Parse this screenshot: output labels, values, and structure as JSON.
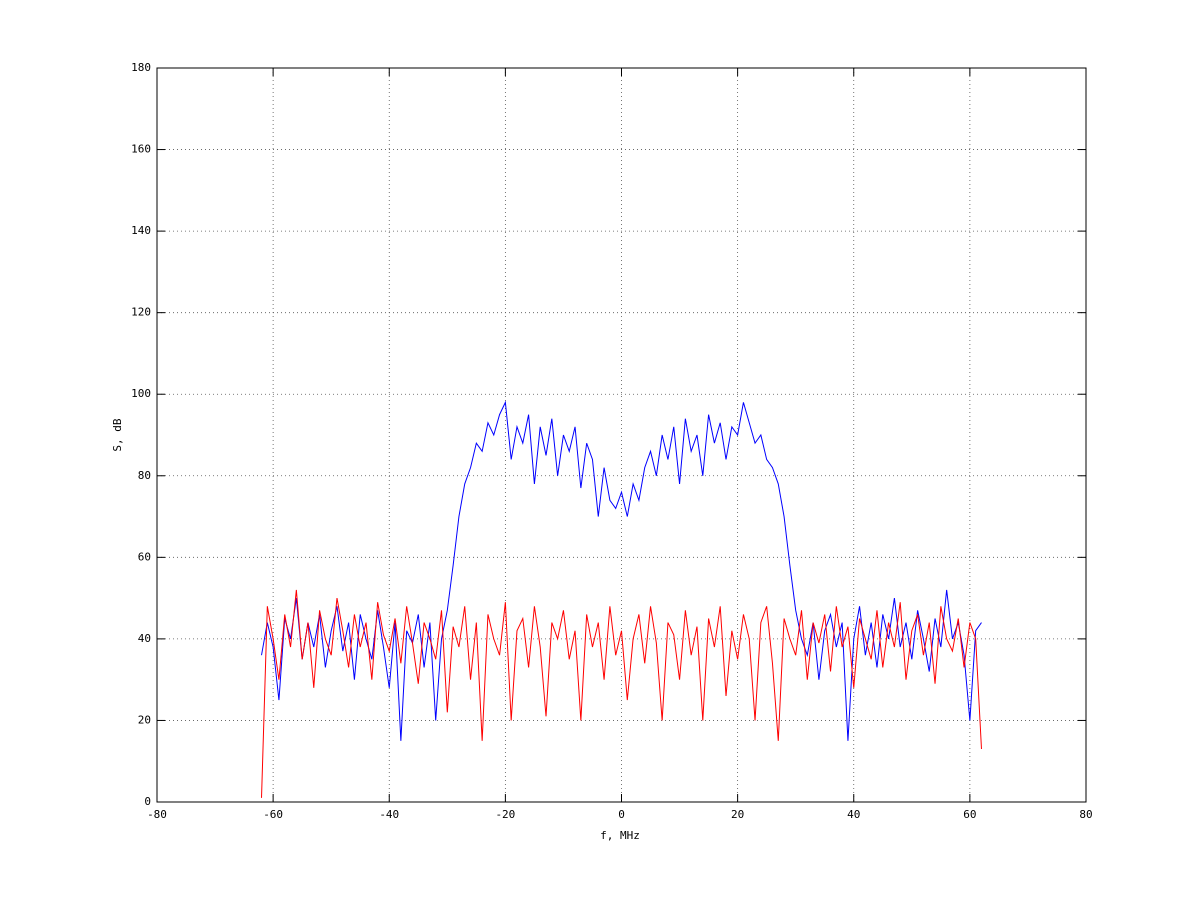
{
  "chart_data": {
    "type": "line",
    "x_label": "f, MHz",
    "y_label": "S, dB",
    "x": [
      -62,
      -61,
      -60,
      -59,
      -58,
      -57,
      -56,
      -55,
      -54,
      -53,
      -52,
      -51,
      -50,
      -49,
      -48,
      -47,
      -46,
      -45,
      -44,
      -43,
      -42,
      -41,
      -40,
      -39,
      -38,
      -37,
      -36,
      -35,
      -34,
      -33,
      -32,
      -31,
      -30,
      -29,
      -28,
      -27,
      -26,
      -25,
      -24,
      -23,
      -22,
      -21,
      -20,
      -19,
      -18,
      -17,
      -16,
      -15,
      -14,
      -13,
      -12,
      -11,
      -10,
      -9,
      -8,
      -7,
      -6,
      -5,
      -4,
      -3,
      -2,
      -1,
      0,
      1,
      2,
      3,
      4,
      5,
      6,
      7,
      8,
      9,
      10,
      11,
      12,
      13,
      14,
      15,
      16,
      17,
      18,
      19,
      20,
      21,
      22,
      23,
      24,
      25,
      26,
      27,
      28,
      29,
      30,
      31,
      32,
      33,
      34,
      35,
      36,
      37,
      38,
      39,
      40,
      41,
      42,
      43,
      44,
      45,
      46,
      47,
      48,
      49,
      50,
      51,
      52,
      53,
      54,
      55,
      56,
      57,
      58,
      59,
      60,
      61,
      62
    ],
    "series": [
      {
        "color": "#0000ff",
        "values": [
          36,
          44,
          38,
          25,
          45,
          40,
          50,
          35,
          44,
          38,
          46,
          33,
          42,
          48,
          37,
          44,
          30,
          46,
          40,
          35,
          47,
          38,
          28,
          44,
          15,
          42,
          39,
          46,
          33,
          44,
          20,
          40,
          47,
          58,
          70,
          78,
          82,
          88,
          86,
          93,
          90,
          95,
          98,
          84,
          92,
          88,
          95,
          78,
          92,
          85,
          94,
          80,
          90,
          86,
          92,
          77,
          88,
          84,
          70,
          82,
          74,
          72,
          76,
          70,
          78,
          74,
          82,
          86,
          80,
          90,
          84,
          92,
          78,
          94,
          86,
          90,
          80,
          95,
          88,
          93,
          84,
          92,
          90,
          98,
          93,
          88,
          90,
          84,
          82,
          78,
          70,
          58,
          47,
          40,
          36,
          44,
          30,
          42,
          46,
          38,
          44,
          15,
          40,
          48,
          36,
          44,
          33,
          46,
          40,
          50,
          38,
          44,
          35,
          47,
          40,
          32,
          45,
          38,
          52,
          40,
          44,
          36,
          20,
          42,
          44
        ]
      },
      {
        "color": "#ff0000",
        "values": [
          1,
          48,
          40,
          30,
          46,
          38,
          52,
          35,
          44,
          28,
          47,
          40,
          36,
          50,
          42,
          33,
          46,
          38,
          44,
          30,
          49,
          41,
          37,
          45,
          34,
          48,
          39,
          29,
          44,
          40,
          35,
          47,
          22,
          43,
          38,
          48,
          30,
          44,
          15,
          46,
          40,
          36,
          49,
          20,
          42,
          45,
          33,
          48,
          38,
          21,
          44,
          40,
          47,
          35,
          42,
          20,
          46,
          38,
          44,
          30,
          48,
          36,
          42,
          25,
          40,
          46,
          34,
          48,
          39,
          20,
          44,
          41,
          30,
          47,
          36,
          43,
          20,
          45,
          38,
          48,
          26,
          42,
          35,
          46,
          40,
          20,
          44,
          48,
          34,
          15,
          45,
          40,
          36,
          47,
          30,
          44,
          39,
          46,
          32,
          48,
          38,
          43,
          28,
          45,
          40,
          35,
          47,
          33,
          44,
          38,
          49,
          30,
          42,
          46,
          36,
          44,
          29,
          48,
          40,
          37,
          45,
          33,
          44,
          40,
          13
        ]
      }
    ],
    "xlim": [
      -80,
      80
    ],
    "xticks": [
      -80,
      -60,
      -40,
      -20,
      0,
      20,
      40,
      60,
      80
    ],
    "ylim": [
      0,
      180
    ],
    "yticks": [
      0,
      20,
      40,
      60,
      80,
      100,
      120,
      140,
      160,
      180
    ],
    "grid": true
  }
}
